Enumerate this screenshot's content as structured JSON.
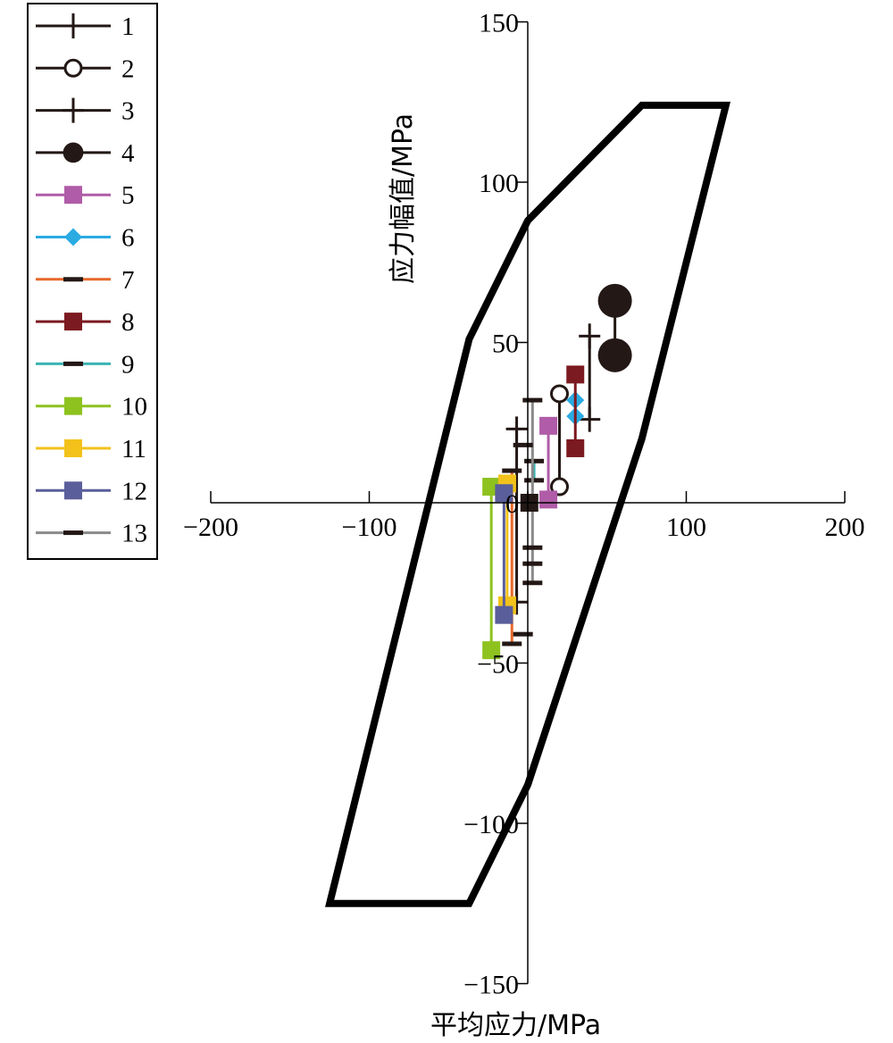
{
  "chart_data": {
    "type": "scatter",
    "xlabel": "平均应力/MPa",
    "ylabel": "应力幅值/MPa",
    "xlim": [
      -200,
      200
    ],
    "ylim": [
      -150,
      150
    ],
    "x_ticks": [
      -200,
      -100,
      0,
      100,
      200
    ],
    "y_ticks": [
      -150,
      -100,
      -50,
      0,
      50,
      100,
      150
    ],
    "x_tick_labels": [
      "−200",
      "−100",
      "0",
      "100",
      "200"
    ],
    "y_tick_labels": [
      "−150",
      "−100",
      "−50",
      "0",
      "50",
      "100",
      "150"
    ],
    "legend_position": "top-left",
    "envelope": {
      "color": "#000000",
      "points": [
        [
          -125,
          -125
        ],
        [
          -37,
          -125
        ],
        [
          0,
          -88
        ],
        [
          72,
          20
        ],
        [
          125,
          124
        ],
        [
          72,
          124
        ],
        [
          0,
          88
        ],
        [
          -37,
          51
        ]
      ]
    },
    "series": [
      {
        "name": "1",
        "color": "#231815",
        "marker": "plus",
        "points": [
          [
            -7,
            23
          ],
          [
            -7,
            -31
          ]
        ]
      },
      {
        "name": "2",
        "color": "#231815",
        "marker": "circle",
        "points": [
          [
            20,
            34
          ],
          [
            20,
            5
          ]
        ]
      },
      {
        "name": "3",
        "color": "#231815",
        "marker": "plus",
        "points": [
          [
            39,
            52
          ],
          [
            39,
            26
          ]
        ]
      },
      {
        "name": "4",
        "color": "#231815",
        "marker": "dot",
        "points": [
          [
            55,
            63
          ],
          [
            55,
            46
          ]
        ]
      },
      {
        "name": "5",
        "color": "#b05ca8",
        "marker": "square",
        "points": [
          [
            13,
            24
          ],
          [
            13,
            1
          ]
        ]
      },
      {
        "name": "6",
        "color": "#2aabe2",
        "marker": "diamond",
        "points": [
          [
            30,
            32
          ],
          [
            30,
            27
          ]
        ]
      },
      {
        "name": "7",
        "color": "#e8692a",
        "marker": "dash",
        "points": [
          [
            -10,
            10
          ],
          [
            -10,
            -44
          ]
        ]
      },
      {
        "name": "8",
        "color": "#7b1a20",
        "marker": "square",
        "points": [
          [
            30,
            40
          ],
          [
            30,
            17
          ]
        ]
      },
      {
        "name": "9",
        "color": "#3bb3b3",
        "marker": "dash",
        "points": [
          [
            4,
            13
          ],
          [
            4,
            7
          ]
        ]
      },
      {
        "name": "10",
        "color": "#8dc21f",
        "marker": "square",
        "points": [
          [
            -23,
            5
          ],
          [
            -23,
            -46
          ]
        ]
      },
      {
        "name": "11",
        "color": "#f2c21b",
        "marker": "square",
        "points": [
          [
            -13,
            6
          ],
          [
            -13,
            -32
          ]
        ]
      },
      {
        "name": "12",
        "color": "#5a5e9a",
        "marker": "square",
        "points": [
          [
            -15,
            3
          ],
          [
            -15,
            -35
          ]
        ]
      },
      {
        "name": "13",
        "color": "#8a8a8a",
        "marker": "dash",
        "points": [
          [
            3,
            32
          ],
          [
            3,
            -25
          ]
        ]
      }
    ],
    "extra_markers": [
      {
        "color": "#231815",
        "marker": "dash",
        "points": [
          [
            -3,
            18
          ],
          [
            -3,
            -41
          ],
          [
            3,
            -14
          ],
          [
            3,
            -19
          ]
        ]
      },
      {
        "color": "#231815",
        "marker": "square",
        "points": [
          [
            1,
            0
          ]
        ]
      }
    ]
  }
}
